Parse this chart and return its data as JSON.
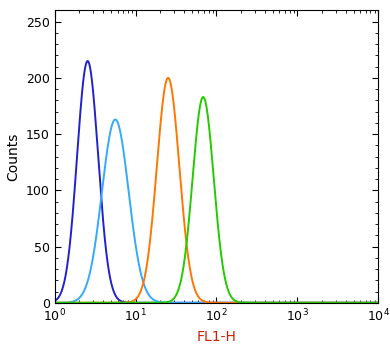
{
  "title": "",
  "xlabel": "FL1-H",
  "ylabel": "Counts",
  "xlim": [
    1,
    10000
  ],
  "ylim": [
    0,
    260
  ],
  "yticks": [
    0,
    50,
    100,
    150,
    200,
    250
  ],
  "curves": [
    {
      "color": "#2222CC",
      "peak_x": 2.8,
      "peak_y": 215,
      "sigma": 0.3,
      "label": "blue"
    },
    {
      "color": "#33AAFF",
      "peak_x": 6.5,
      "peak_y": 163,
      "sigma": 0.38,
      "label": "cyan"
    },
    {
      "color": "#FF7700",
      "peak_x": 28,
      "peak_y": 200,
      "sigma": 0.32,
      "label": "orange"
    },
    {
      "color": "#22CC00",
      "peak_x": 75,
      "peak_y": 183,
      "sigma": 0.3,
      "label": "green"
    }
  ],
  "xlabel_color": "#CC2200",
  "background_color": "#ffffff",
  "linewidth": 1.4
}
